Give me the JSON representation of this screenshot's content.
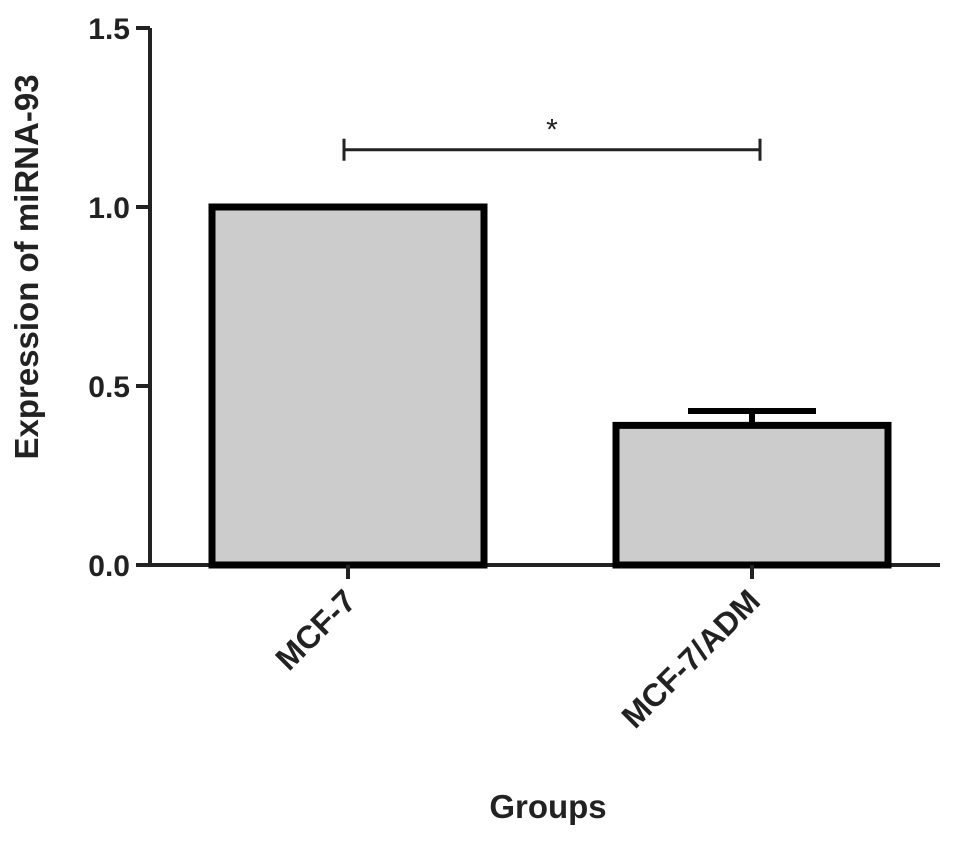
{
  "chart_data": {
    "type": "bar",
    "categories": [
      "MCF-7",
      "MCF-7/ADM"
    ],
    "values": [
      1.0,
      0.39
    ],
    "errors": [
      0.0,
      0.04
    ],
    "xlabel": "Groups",
    "ylabel": "Expression of miRNA-93",
    "ylim": [
      0,
      1.5
    ],
    "yticks": [
      0.0,
      0.5,
      1.0,
      1.5
    ],
    "ytick_labels": [
      "0.0",
      "0.5",
      "1.0",
      "1.5"
    ],
    "grid": false,
    "bar_fill": "#cccccc",
    "bar_stroke": "#000000",
    "annotations": [
      {
        "type": "significance-bracket",
        "from": "MCF-7",
        "to": "MCF-7/ADM",
        "y": 1.16,
        "label": "*"
      }
    ]
  }
}
